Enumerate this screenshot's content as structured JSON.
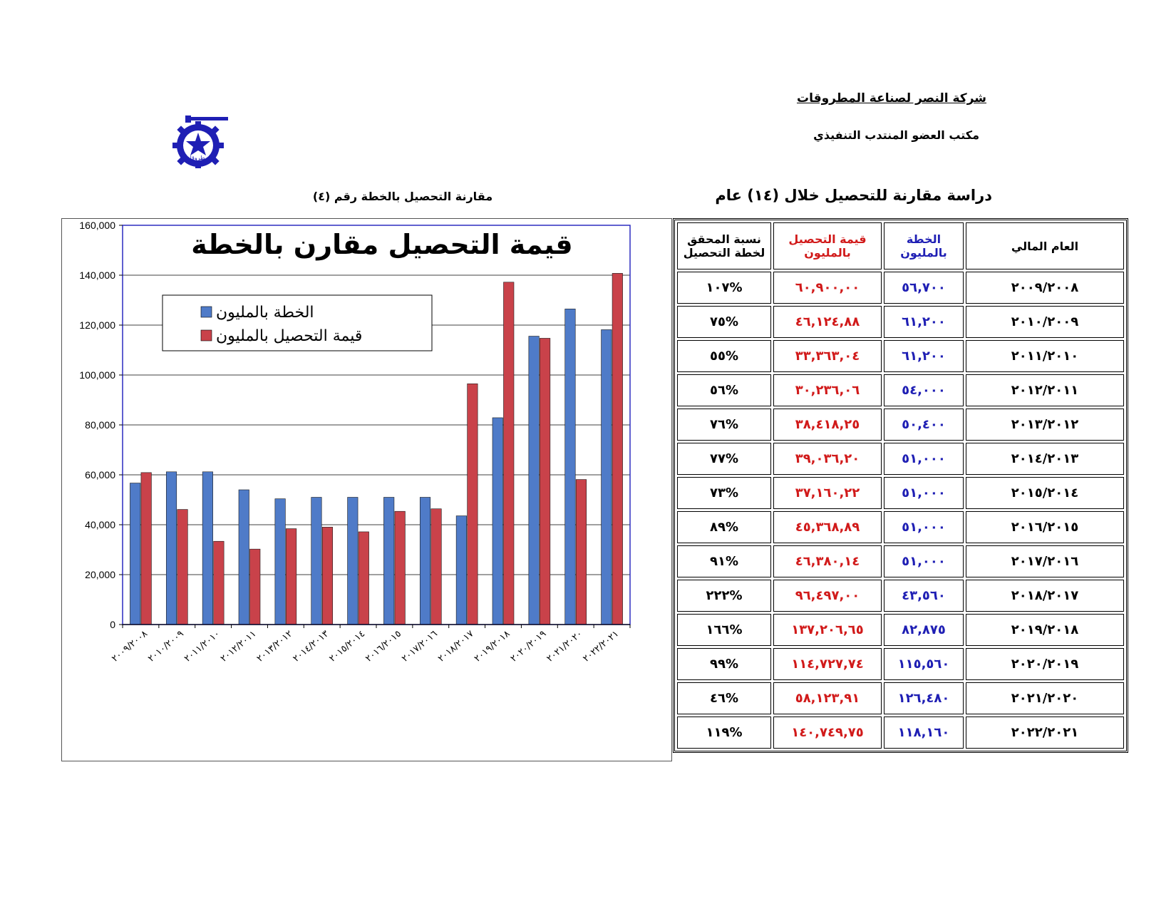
{
  "header": {
    "company": "شركة النصر لصناعة المطروقات",
    "office": "مكتب العضو المنتدب التنفيذي",
    "logo_text": "المطروقات",
    "study_title": "دراسة مقارنة للتحصيل خلال (١٤) عام",
    "chart_caption": "مقارنة التحصيل بالخطة رقم (٤)"
  },
  "table": {
    "headers": {
      "year": "العام المالي",
      "plan": "الخطة بالمليون",
      "collection": "قيمة التحصيل بالمليون",
      "ratio": "نسبة المحقق لخطة التحصيل"
    },
    "rows": [
      {
        "year": "٢٠٠٩/٢٠٠٨",
        "plan": "٥٦,٧٠٠",
        "collection": "٦٠,٩٠٠,٠٠",
        "ratio": "%١٠٧"
      },
      {
        "year": "٢٠١٠/٢٠٠٩",
        "plan": "٦١,٢٠٠",
        "collection": "٤٦,١٢٤,٨٨",
        "ratio": "%٧٥"
      },
      {
        "year": "٢٠١١/٢٠١٠",
        "plan": "٦١,٢٠٠",
        "collection": "٣٣,٣٦٣,٠٤",
        "ratio": "%٥٥"
      },
      {
        "year": "٢٠١٢/٢٠١١",
        "plan": "٥٤,٠٠٠",
        "collection": "٣٠,٢٣٦,٠٦",
        "ratio": "%٥٦"
      },
      {
        "year": "٢٠١٣/٢٠١٢",
        "plan": "٥٠,٤٠٠",
        "collection": "٣٨,٤١٨,٢٥",
        "ratio": "%٧٦"
      },
      {
        "year": "٢٠١٤/٢٠١٣",
        "plan": "٥١,٠٠٠",
        "collection": "٣٩,٠٣٦,٢٠",
        "ratio": "%٧٧"
      },
      {
        "year": "٢٠١٥/٢٠١٤",
        "plan": "٥١,٠٠٠",
        "collection": "٣٧,١٦٠,٢٢",
        "ratio": "%٧٣"
      },
      {
        "year": "٢٠١٦/٢٠١٥",
        "plan": "٥١,٠٠٠",
        "collection": "٤٥,٣٦٨,٨٩",
        "ratio": "%٨٩"
      },
      {
        "year": "٢٠١٧/٢٠١٦",
        "plan": "٥١,٠٠٠",
        "collection": "٤٦,٣٨٠,١٤",
        "ratio": "%٩١"
      },
      {
        "year": "٢٠١٨/٢٠١٧",
        "plan": "٤٣,٥٦٠",
        "collection": "٩٦,٤٩٧,٠٠",
        "ratio": "%٢٢٢"
      },
      {
        "year": "٢٠١٩/٢٠١٨",
        "plan": "٨٢,٨٧٥",
        "collection": "١٣٧,٢٠٦,٦٥",
        "ratio": "%١٦٦"
      },
      {
        "year": "٢٠٢٠/٢٠١٩",
        "plan": "١١٥,٥٦٠",
        "collection": "١١٤,٧٢٧,٧٤",
        "ratio": "%٩٩"
      },
      {
        "year": "٢٠٢١/٢٠٢٠",
        "plan": "١٢٦,٤٨٠",
        "collection": "٥٨,١٢٣,٩١",
        "ratio": "%٤٦"
      },
      {
        "year": "٢٠٢٢/٢٠٢١",
        "plan": "١١٨,١٦٠",
        "collection": "١٤٠,٧٤٩,٧٥",
        "ratio": "%١١٩"
      }
    ]
  },
  "colors": {
    "plan_series": "#4f7bc8",
    "collection_series": "#c9424a",
    "plot_border": "#2c2cc0",
    "table_blue": "#1f1fb4",
    "table_red": "#d11a1a"
  },
  "chart_data": {
    "type": "bar",
    "title": "قيمة التحصيل مقارن بالخطة",
    "categories": [
      "٢٠٠٩/٢٠٠٨",
      "٢٠١٠/٢٠٠٩",
      "٢٠١١/٢٠١٠",
      "٢٠١٢/٢٠١١",
      "٢٠١٣/٢٠١٢",
      "٢٠١٤/٢٠١٣",
      "٢٠١٥/٢٠١٤",
      "٢٠١٦/٢٠١٥",
      "٢٠١٧/٢٠١٦",
      "٢٠١٨/٢٠١٧",
      "٢٠١٩/٢٠١٨",
      "٢٠٢٠/٢٠١٩",
      "٢٠٢١/٢٠٢٠",
      "٢٠٢٢/٢٠٢١"
    ],
    "series": [
      {
        "name": "الخطة بالمليون",
        "values": [
          56700,
          61200,
          61200,
          54000,
          50400,
          51000,
          51000,
          51000,
          51000,
          43560,
          82875,
          115560,
          126480,
          118160
        ]
      },
      {
        "name": "قيمة التحصيل  بالمليون",
        "values": [
          60900,
          46124.88,
          33363.04,
          30236.06,
          38418.25,
          39036.2,
          37160.22,
          45368.89,
          46380.14,
          96497,
          137206.65,
          114727.74,
          58123.91,
          140749.75
        ]
      }
    ],
    "ylim": [
      0,
      160000
    ],
    "yticks": [
      0,
      20000,
      40000,
      60000,
      80000,
      100000,
      120000,
      140000,
      160000
    ],
    "ytick_labels": [
      "0",
      "20,000",
      "40,000",
      "60,000",
      "80,000",
      "100,000",
      "120,000",
      "140,000",
      "160,000"
    ],
    "grid": true,
    "legend_position": "top-left"
  }
}
